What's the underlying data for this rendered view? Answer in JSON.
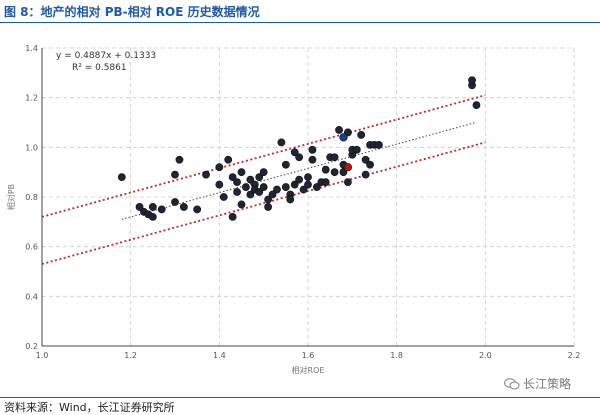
{
  "header": {
    "title": "图 8：地产的相对 PB-相对 ROE 历史数据情况"
  },
  "footer": {
    "source": "资料来源：Wind，长江证券研究所"
  },
  "watermark": {
    "text": "长江策略",
    "icon": "wechat-icon"
  },
  "colors": {
    "title": "#1f5aa6",
    "point": "#1f2533",
    "highlight_red": "#b3161b",
    "highlight_blue": "#1c3d8f",
    "band_line": "#c0282a",
    "trend_line": "#444444"
  },
  "chart_data": {
    "type": "scatter",
    "xlabel": "相对ROE",
    "ylabel": "相对PB",
    "xlim": [
      1.0,
      2.2
    ],
    "ylim": [
      0.2,
      1.4
    ],
    "xticks": [
      "1.0",
      "1.2",
      "1.4",
      "1.6",
      "1.8",
      "2.0",
      "2.2"
    ],
    "yticks": [
      "0.2",
      "0.4",
      "0.6",
      "0.8",
      "1.0",
      "1.2",
      "1.4"
    ],
    "grid": true,
    "annotations": {
      "equation": "y = 0.4887x + 0.1333",
      "r2": "R² = 0.5861"
    },
    "trendline": {
      "slope": 0.4887,
      "intercept": 0.1333,
      "x_range": [
        1.18,
        1.98
      ]
    },
    "bands": [
      {
        "x": [
          1.0,
          2.0
        ],
        "y": [
          0.72,
          1.21
        ]
      },
      {
        "x": [
          1.0,
          2.0
        ],
        "y": [
          0.53,
          1.02
        ]
      }
    ],
    "points": [
      [
        1.18,
        0.88
      ],
      [
        1.22,
        0.76
      ],
      [
        1.23,
        0.74
      ],
      [
        1.24,
        0.73
      ],
      [
        1.25,
        0.76
      ],
      [
        1.25,
        0.72
      ],
      [
        1.27,
        0.75
      ],
      [
        1.3,
        0.78
      ],
      [
        1.3,
        0.89
      ],
      [
        1.31,
        0.95
      ],
      [
        1.32,
        0.76
      ],
      [
        1.35,
        0.75
      ],
      [
        1.37,
        0.89
      ],
      [
        1.4,
        0.92
      ],
      [
        1.4,
        0.85
      ],
      [
        1.41,
        0.8
      ],
      [
        1.42,
        0.95
      ],
      [
        1.43,
        0.72
      ],
      [
        1.43,
        0.88
      ],
      [
        1.44,
        0.86
      ],
      [
        1.44,
        0.82
      ],
      [
        1.45,
        0.9
      ],
      [
        1.45,
        0.77
      ],
      [
        1.46,
        0.84
      ],
      [
        1.47,
        0.87
      ],
      [
        1.47,
        0.81
      ],
      [
        1.48,
        0.85
      ],
      [
        1.48,
        0.83
      ],
      [
        1.49,
        0.88
      ],
      [
        1.49,
        0.82
      ],
      [
        1.5,
        0.84
      ],
      [
        1.5,
        0.9
      ],
      [
        1.51,
        0.79
      ],
      [
        1.51,
        0.76
      ],
      [
        1.52,
        0.81
      ],
      [
        1.53,
        0.83
      ],
      [
        1.54,
        1.02
      ],
      [
        1.55,
        0.84
      ],
      [
        1.55,
        0.93
      ],
      [
        1.56,
        0.81
      ],
      [
        1.56,
        0.79
      ],
      [
        1.57,
        0.85
      ],
      [
        1.57,
        0.98
      ],
      [
        1.58,
        0.96
      ],
      [
        1.58,
        0.87
      ],
      [
        1.59,
        0.83
      ],
      [
        1.6,
        0.88
      ],
      [
        1.6,
        0.85
      ],
      [
        1.61,
        0.95
      ],
      [
        1.61,
        0.99
      ],
      [
        1.62,
        0.84
      ],
      [
        1.63,
        0.86
      ],
      [
        1.64,
        0.86
      ],
      [
        1.64,
        0.91
      ],
      [
        1.65,
        0.96
      ],
      [
        1.66,
        0.96
      ],
      [
        1.66,
        0.9
      ],
      [
        1.67,
        1.07
      ],
      [
        1.68,
        0.93
      ],
      [
        1.68,
        0.9
      ],
      [
        1.69,
        0.86
      ],
      [
        1.69,
        1.06
      ],
      [
        1.7,
        0.97
      ],
      [
        1.7,
        0.99
      ],
      [
        1.71,
        0.99
      ],
      [
        1.72,
        1.05
      ],
      [
        1.73,
        0.95
      ],
      [
        1.73,
        0.89
      ],
      [
        1.74,
        0.93
      ],
      [
        1.74,
        1.01
      ],
      [
        1.75,
        1.01
      ],
      [
        1.76,
        1.01
      ],
      [
        1.97,
        1.25
      ],
      [
        1.97,
        1.27
      ],
      [
        1.98,
        1.17
      ]
    ],
    "highlight": [
      {
        "x": 1.69,
        "y": 0.92,
        "color": "red"
      },
      {
        "x": 1.68,
        "y": 1.04,
        "color": "blue"
      }
    ]
  }
}
